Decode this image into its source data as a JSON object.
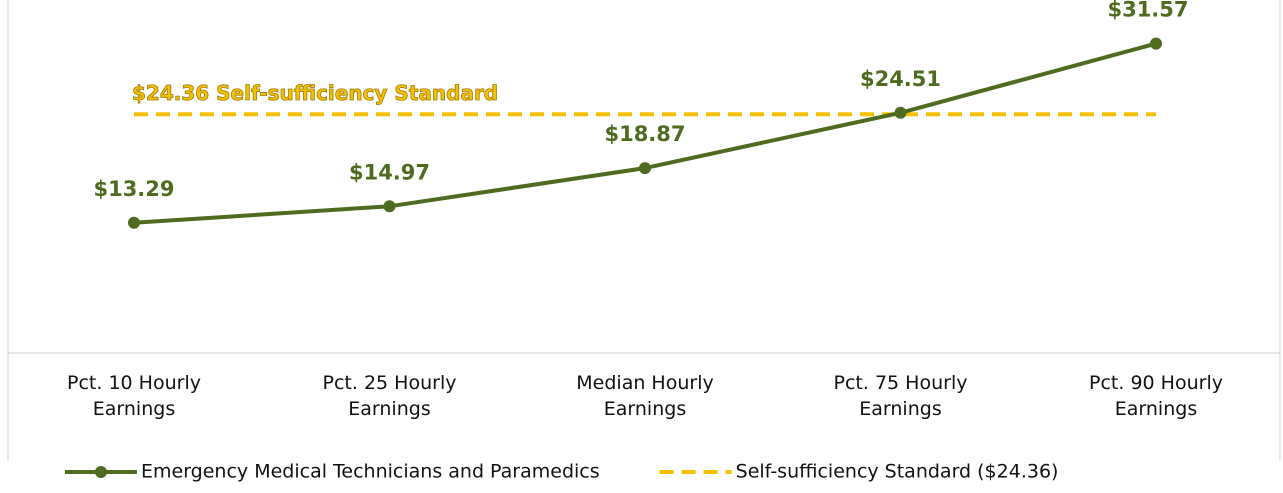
{
  "chart_data": {
    "type": "line",
    "categories": [
      "Pct. 10 Hourly Earnings",
      "Pct. 25 Hourly Earnings",
      "Median Hourly Earnings",
      "Pct. 75 Hourly Earnings",
      "Pct. 90 Hourly Earnings"
    ],
    "series": [
      {
        "name": "Emergency Medical Technicians and Paramedics",
        "color": "#4e6b1f",
        "values": [
          13.29,
          14.97,
          18.87,
          24.51,
          31.57
        ],
        "value_labels": [
          "$13.29",
          "$14.97",
          "$18.87",
          "$24.51",
          "$31.57"
        ],
        "marker": true
      },
      {
        "name": "Self-sufficiency Standard ($24.36)",
        "color": "#f5c000",
        "values": [
          24.36,
          24.36,
          24.36,
          24.36,
          24.36
        ],
        "dashed": true
      }
    ],
    "annotation": "$24.36 Self-sufficiency Standard",
    "ylim": [
      0,
      35
    ],
    "legend": "bottom"
  }
}
